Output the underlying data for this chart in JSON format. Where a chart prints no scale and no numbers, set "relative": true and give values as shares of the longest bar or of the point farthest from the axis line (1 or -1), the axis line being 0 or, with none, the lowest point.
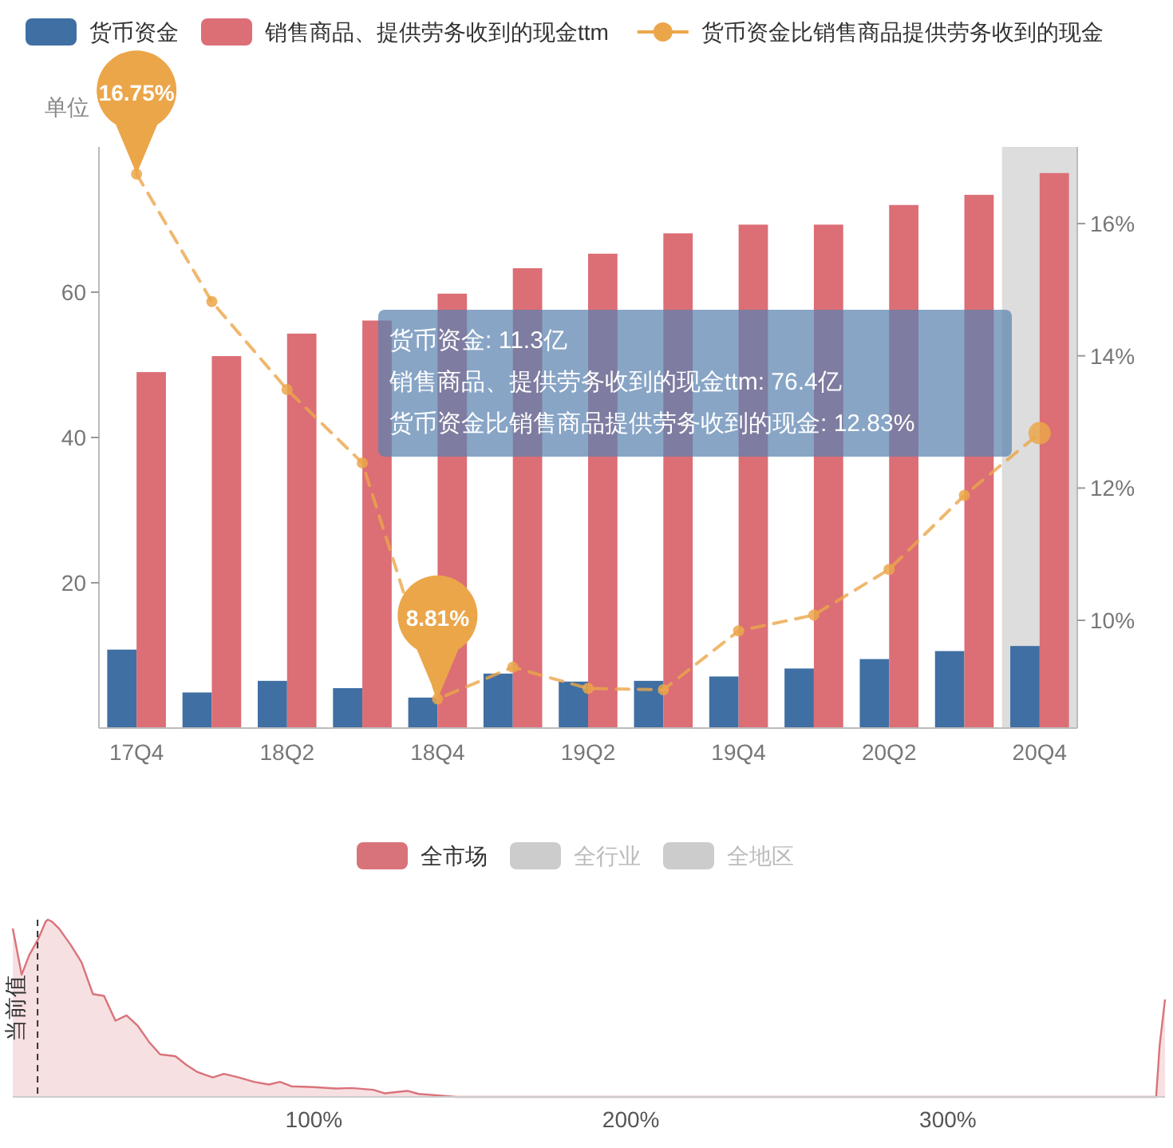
{
  "chart_data": [
    {
      "type": "bar",
      "ylabel": "单位",
      "legend": "top left",
      "marker": "circle",
      "line_style": "dashed",
      "categories": [
        "17Q4",
        null,
        "18Q2",
        null,
        "18Q4",
        null,
        "19Q2",
        null,
        "19Q4",
        null,
        "20Q2",
        null,
        "20Q4"
      ],
      "series": [
        {
          "name": "货币资金",
          "type": "bar",
          "color": "#3f6fa3",
          "values": [
            10.8,
            4.9,
            6.5,
            5.5,
            4.2,
            7.5,
            6.4,
            6.5,
            7.1,
            8.2,
            9.5,
            10.6,
            11.3
          ]
        },
        {
          "name": "销售商品、提供劳务收到的现金ttm",
          "type": "bar",
          "color": "#dc6e76",
          "values": [
            49.0,
            51.2,
            54.3,
            56.1,
            59.8,
            63.3,
            65.3,
            68.1,
            69.3,
            69.3,
            72.0,
            73.4,
            76.4
          ]
        },
        {
          "name": "货币资金比销售商品提供劳务收到的现金",
          "type": "line",
          "axis": "y2",
          "color": "#eba64a",
          "values": [
            16.75,
            14.82,
            13.49,
            12.38,
            8.81,
            9.29,
            8.97,
            8.95,
            9.84,
            10.08,
            10.77,
            11.89,
            12.83
          ],
          "value_labels": [
            "16.75%",
            null,
            null,
            null,
            "8.81%",
            null,
            null,
            null,
            null,
            null,
            null,
            null,
            null
          ]
        }
      ],
      "ylim": [
        0,
        80
      ],
      "yticks": [
        20,
        40,
        60
      ],
      "y2lim": [
        8.37,
        17.16
      ],
      "y2ticks": [
        {
          "value": 10,
          "label": "10%"
        },
        {
          "value": 12,
          "label": "12%"
        },
        {
          "value": 14,
          "label": "14%"
        },
        {
          "value": 16,
          "label": "16%"
        }
      ],
      "bands": [
        {
          "axis": "x",
          "from": "20Q4",
          "to": "20Q4",
          "color": "#dddddd"
        }
      ],
      "annotations": [
        "货币资金: 11.3亿",
        "销售商品、提供劳务收到的现金ttm: 76.4亿",
        "货币资金比销售商品提供劳务收到的现金: 12.83%"
      ]
    },
    {
      "type": "area",
      "relative": true,
      "legend": "top",
      "xlim": [
        5,
        368.5
      ],
      "xticks": [
        {
          "value": 100,
          "label": "100%"
        },
        {
          "value": 200,
          "label": "200%"
        },
        {
          "value": 300,
          "label": "300%"
        }
      ],
      "series": [
        {
          "name": "全市场",
          "color": "#d9737a",
          "x": [
            5,
            7.8,
            10.2,
            13,
            15.4,
            16.1,
            17.3,
            19.6,
            23.2,
            26.7,
            30.3,
            33.8,
            37.4,
            40.9,
            44.5,
            48,
            51.5,
            56.3,
            59.8,
            63.3,
            68.1,
            71.6,
            76.3,
            81.1,
            85.8,
            89.3,
            92.9,
            100,
            107,
            111.8,
            118.8,
            122.4,
            129.5,
            133,
            142.5,
            144.8,
            365.7,
            366.8,
            368.5
          ],
          "values": [
            0.95,
            0.69,
            0.8,
            0.89,
            0.99,
            1,
            0.99,
            0.95,
            0.86,
            0.76,
            0.58,
            0.57,
            0.43,
            0.46,
            0.4,
            0.31,
            0.24,
            0.23,
            0.18,
            0.14,
            0.11,
            0.13,
            0.11,
            0.085,
            0.07,
            0.085,
            0.06,
            0.055,
            0.047,
            0.05,
            0.04,
            0.02,
            0.034,
            0.017,
            0.004,
            0,
            0,
            0.29,
            0.55
          ]
        },
        {
          "name": "全行业",
          "color": "#cccccc"
        },
        {
          "name": "全地区",
          "color": "#cccccc"
        }
      ],
      "ref_lines": [
        {
          "axis": "x",
          "value": 12.83,
          "label": "当前值",
          "color": "#333333",
          "line_style": "dashed"
        }
      ]
    }
  ]
}
